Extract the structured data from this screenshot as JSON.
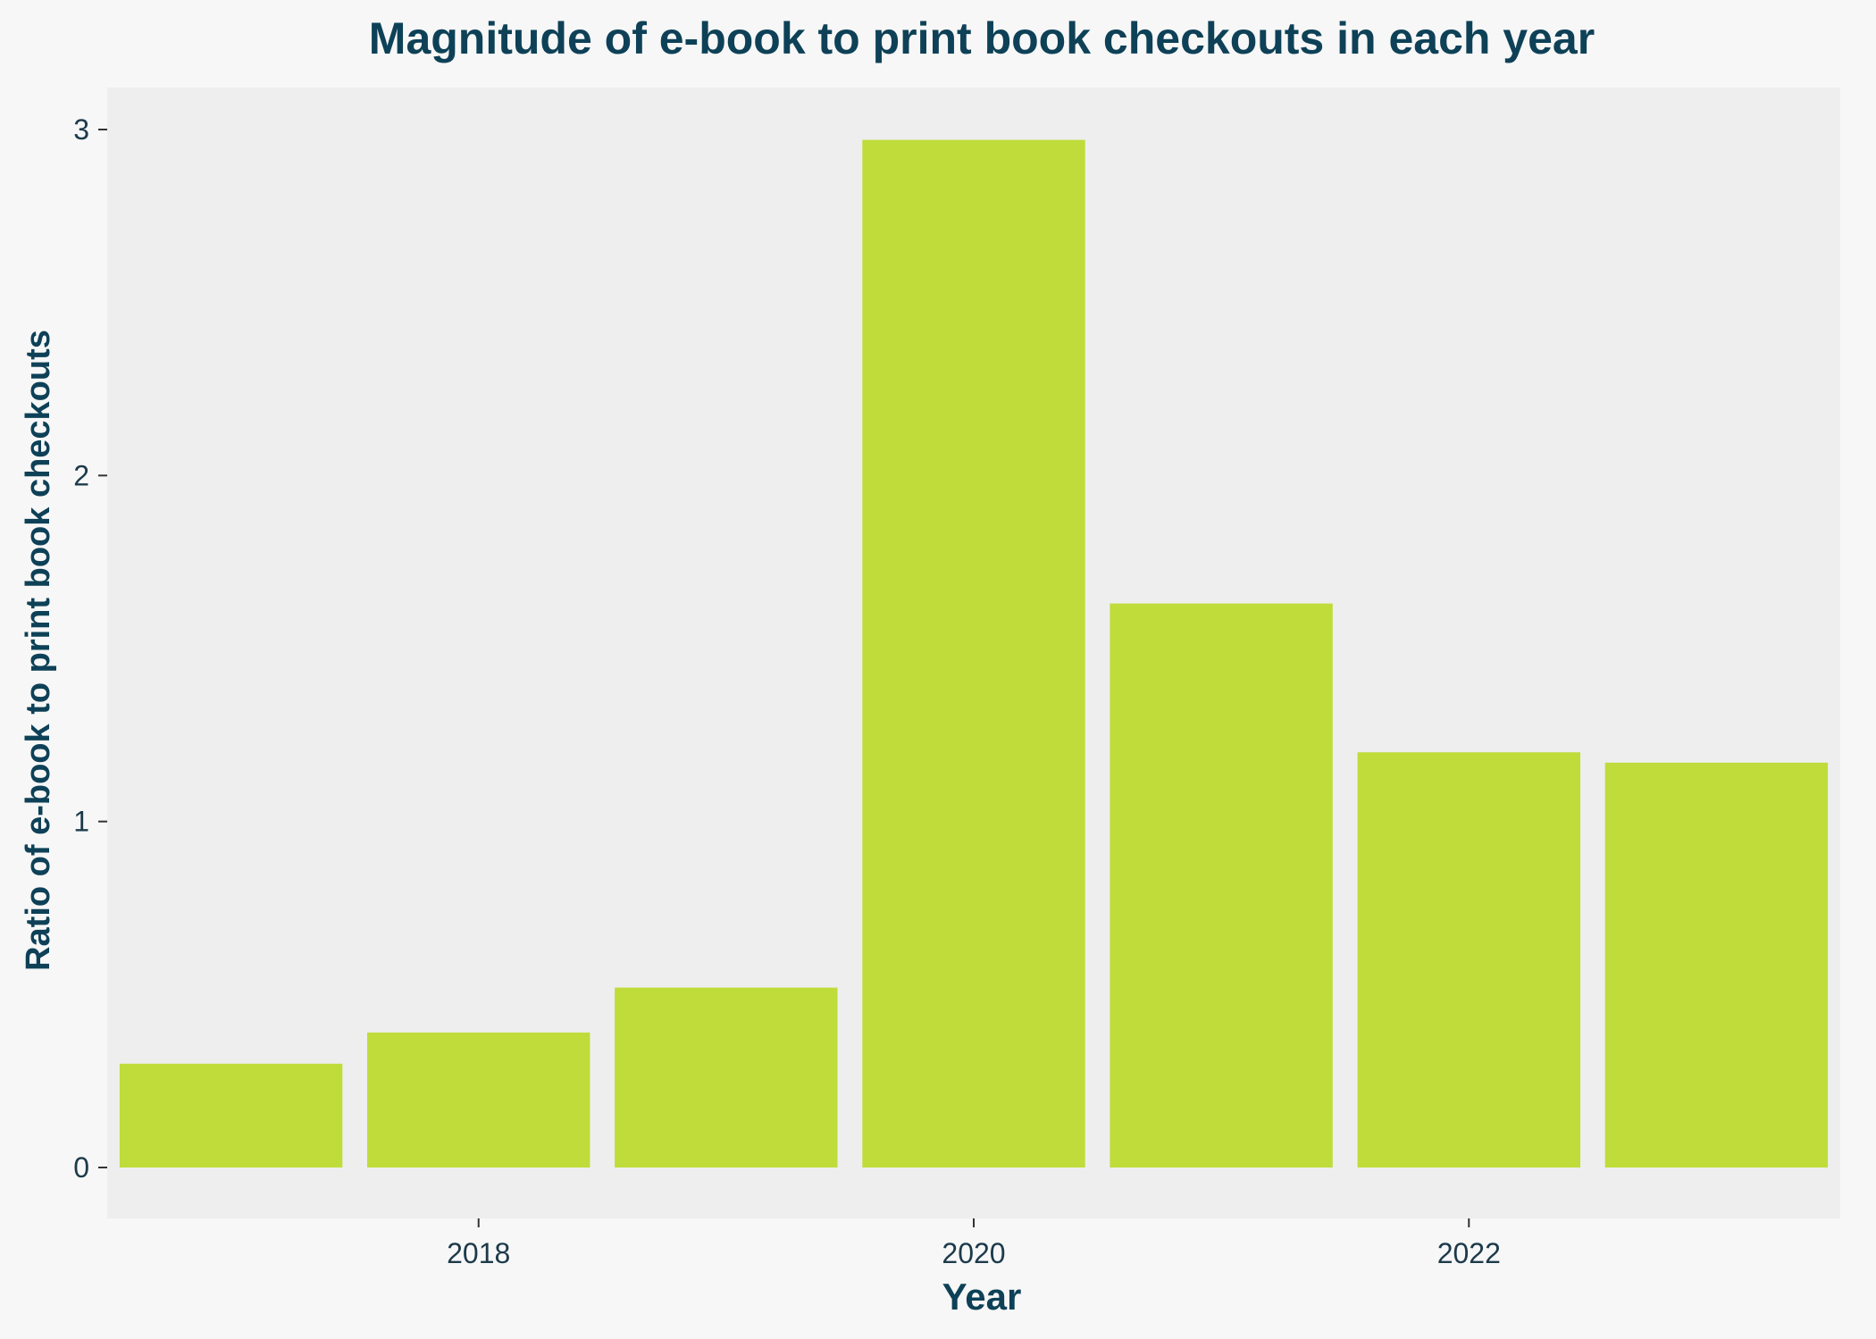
{
  "chart_data": {
    "type": "bar",
    "title": "Magnitude of e-book to print book checkouts in each year",
    "xlabel": "Year",
    "ylabel": "Ratio of e-book to print book checkouts",
    "x": [
      2017,
      2018,
      2019,
      2020,
      2021,
      2022,
      2023
    ],
    "values": [
      0.3,
      0.39,
      0.52,
      2.97,
      1.63,
      1.2,
      1.17
    ],
    "xlim": [
      2016.5,
      2023.5
    ],
    "ylim": [
      0,
      3.15
    ],
    "xticks": [
      2018,
      2020,
      2022
    ],
    "yticks": [
      0,
      1,
      2,
      3
    ],
    "grid": false,
    "colors": {
      "bar": "#bfdc3a",
      "panel": "#eeeeee",
      "background": "#f7f7f7",
      "title": "#0e4157",
      "tick_text": "#1c3a4a",
      "tick_mark": "#333333"
    }
  }
}
